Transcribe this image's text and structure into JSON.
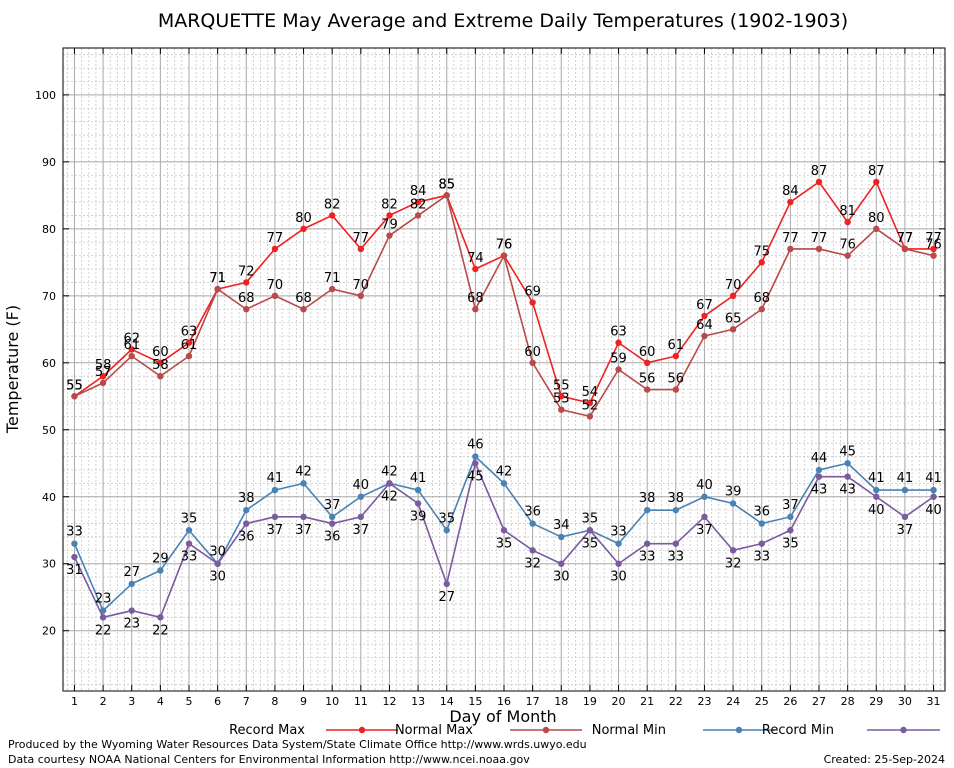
{
  "chart_data": {
    "type": "line",
    "title": "MARQUETTE May Average and Extreme Daily Temperatures (1902-1903)",
    "xlabel": "Day of Month",
    "ylabel": "Temperature (F)",
    "x": [
      1,
      2,
      3,
      4,
      5,
      6,
      7,
      8,
      9,
      10,
      11,
      12,
      13,
      14,
      15,
      16,
      17,
      18,
      19,
      20,
      21,
      22,
      23,
      24,
      25,
      26,
      27,
      28,
      29,
      30,
      31
    ],
    "xlim": [
      0.6,
      31.4
    ],
    "ylim": [
      11,
      107
    ],
    "yticks": [
      20,
      30,
      40,
      50,
      60,
      70,
      80,
      90,
      100
    ],
    "grid": true,
    "legend_position": "bottom",
    "series": [
      {
        "name": "Record Max",
        "color": "#ee2222",
        "values": [
          55,
          58,
          62,
          60,
          63,
          71,
          72,
          77,
          80,
          82,
          77,
          82,
          84,
          85,
          74,
          76,
          69,
          55,
          54,
          63,
          60,
          61,
          67,
          70,
          75,
          84,
          87,
          81,
          87,
          77,
          77
        ]
      },
      {
        "name": "Normal Max",
        "color": "#b84a4a",
        "values": [
          55,
          57,
          61,
          58,
          61,
          71,
          68,
          70,
          68,
          71,
          70,
          79,
          82,
          85,
          68,
          76,
          60,
          53,
          52,
          59,
          56,
          56,
          64,
          65,
          68,
          77,
          77,
          76,
          80,
          77,
          76
        ]
      },
      {
        "name": "Normal Min",
        "color": "#4a82b4",
        "values": [
          33,
          23,
          27,
          29,
          35,
          30,
          38,
          41,
          42,
          37,
          40,
          42,
          41,
          35,
          46,
          42,
          36,
          34,
          35,
          33,
          38,
          38,
          40,
          39,
          36,
          37,
          44,
          45,
          41,
          41,
          41
        ]
      },
      {
        "name": "Record Min",
        "color": "#7b5aa0",
        "values": [
          31,
          22,
          23,
          22,
          33,
          30,
          36,
          37,
          37,
          36,
          37,
          42,
          39,
          27,
          45,
          35,
          32,
          30,
          35,
          30,
          33,
          33,
          37,
          32,
          33,
          35,
          43,
          43,
          40,
          37,
          40
        ]
      }
    ]
  },
  "footer": {
    "produced_by": "Produced by the Wyoming Water Resources Data System/State Climate Office http://www.wrds.uwyo.edu",
    "courtesy": "Data courtesy NOAA National Centers for Environmental Information http://www.ncei.noaa.gov",
    "created": "Created:  25-Sep-2024"
  }
}
